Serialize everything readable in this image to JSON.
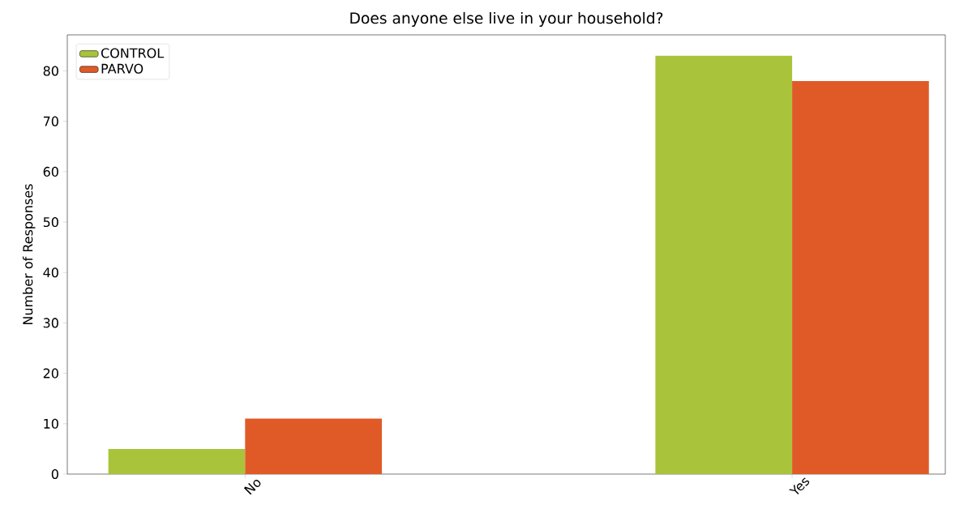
{
  "chart_data": {
    "type": "bar",
    "title": "Does anyone else live in your household?",
    "ylabel": "Number of Responses",
    "categories": [
      "No",
      "Yes"
    ],
    "series": [
      {
        "name": "CONTROL",
        "color": "#a9c43a",
        "values": [
          5,
          83
        ]
      },
      {
        "name": "PARVO",
        "color": "#e05a28",
        "values": [
          11,
          78
        ]
      }
    ],
    "ylim": [
      0,
      87.15
    ],
    "yticks": [
      0,
      10,
      20,
      30,
      40,
      50,
      60,
      70,
      80
    ],
    "grid": false,
    "legend": "top left"
  }
}
